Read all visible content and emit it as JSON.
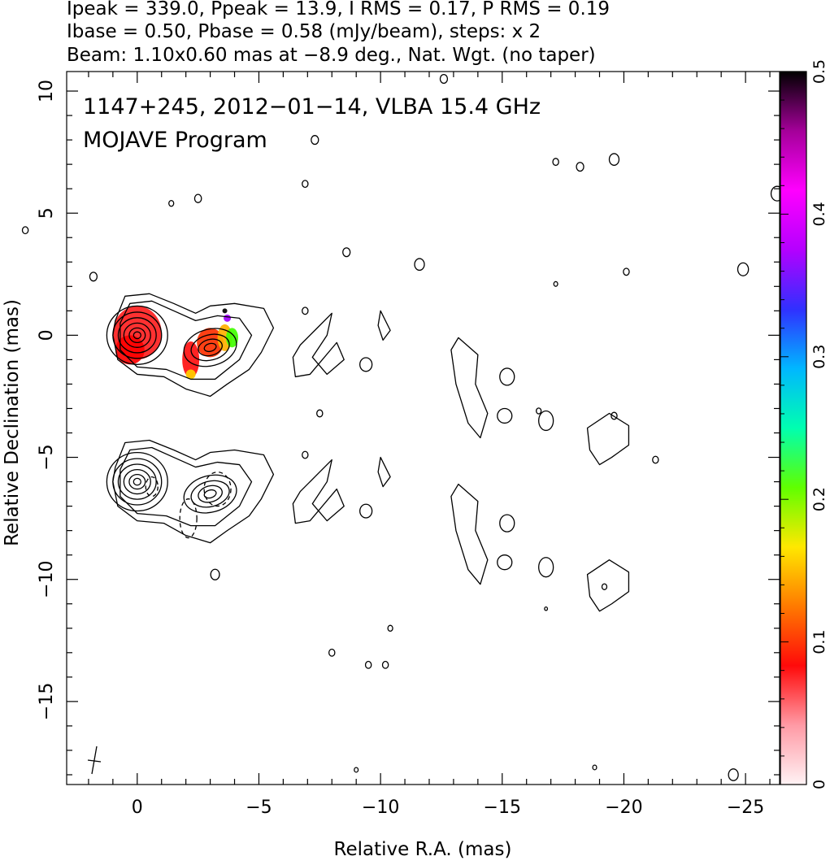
{
  "header": {
    "line1": "Ipeak = 339.0, Ppeak = 13.9, I RMS = 0.17, P RMS = 0.19",
    "line2": "Ibase = 0.50, Pbase = 0.58 (mJy/beam), steps: x 2",
    "line3": "Beam: 1.10x0.60 mas at −8.9 deg., Nat. Wgt. (no taper)"
  },
  "chart_data": {
    "type": "heatmap",
    "title": "1147+245, 2012−01−14, VLBA 15.4 GHz",
    "subtitle": "MOJAVE Program",
    "xlabel": "Relative R.A. (mas)",
    "ylabel": "Relative Declination (mas)",
    "xlim": [
      2.9,
      -26.4
    ],
    "ylim": [
      -18.4,
      10.8
    ],
    "x_ticks": [
      0,
      -5,
      -10,
      -15,
      -20,
      -25
    ],
    "x_tick_labels": [
      "0",
      "−5",
      "−10",
      "−15",
      "−20",
      "−25"
    ],
    "y_ticks": [
      10,
      5,
      0,
      -5,
      -10,
      -15
    ],
    "y_tick_labels": [
      "10",
      "5",
      "0",
      "−5",
      "−10",
      "−15"
    ],
    "colorbar": {
      "range": [
        0,
        0.5
      ],
      "ticks": [
        0,
        0.1,
        0.2,
        0.3,
        0.4,
        0.5
      ],
      "tick_labels": [
        "0",
        "0.1",
        "0.2",
        "0.3",
        "0.4",
        "0.5"
      ],
      "colors": [
        "#fff2f4",
        "#ff9aa5",
        "#ff0a0a",
        "#ff7a00",
        "#ffe800",
        "#60ff00",
        "#00ffb0",
        "#00b7ff",
        "#3030ff",
        "#b400ff",
        "#ff00ff",
        "#a40099",
        "#000000"
      ]
    },
    "panels": [
      {
        "name": "upper",
        "core": [
          0,
          0
        ],
        "jet_component": [
          -3.0,
          -0.5
        ],
        "dec_offset": 0
      },
      {
        "name": "lower",
        "core": [
          0,
          -6
        ],
        "jet_component": [
          -3.0,
          -6.5
        ],
        "dec_offset": -6
      }
    ]
  }
}
